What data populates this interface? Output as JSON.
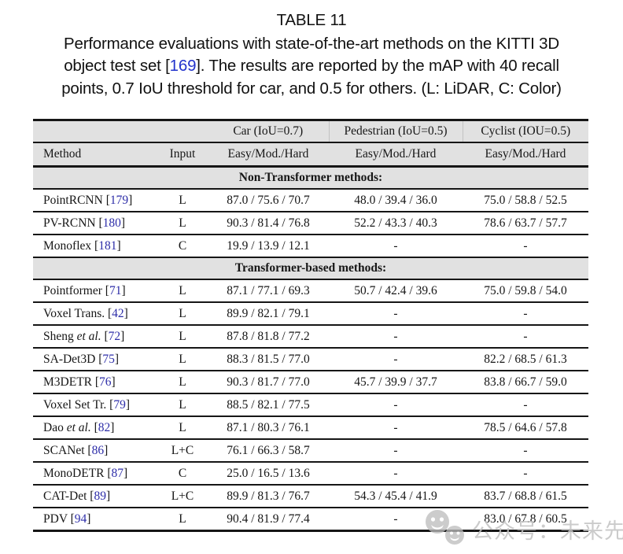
{
  "caption": {
    "title": "TABLE 11",
    "lines": [
      [
        {
          "t": "Performance evaluations with state-of-the-art methods on the KITTI 3D"
        }
      ],
      [
        {
          "t": "object test set ["
        },
        {
          "t": "169",
          "link": true
        },
        {
          "t": "]. The results are reported by the mAP with 40 recall"
        }
      ],
      [
        {
          "t": "points, 0.7 IoU threshold for car, and 0.5 for others. (L: LiDAR, C: Color)"
        }
      ]
    ]
  },
  "table": {
    "group_headers": {
      "car": "Car (IoU=0.7)",
      "pedestrian": "Pedestrian (IoU=0.5)",
      "cyclist": "Cyclist (IOU=0.5)"
    },
    "column_headers": {
      "method": "Method",
      "input": "Input",
      "metric": "Easy/Mod./Hard"
    },
    "sections": [
      {
        "title": "Non-Transformer methods:",
        "rows": [
          {
            "name": "PointRCNN",
            "etal": "",
            "cite": "179",
            "input": "L",
            "car": "87.0 / 75.6 / 70.7",
            "pedestrian": "48.0 / 39.4 / 36.0",
            "cyclist": "75.0 / 58.8 / 52.5"
          },
          {
            "name": "PV-RCNN",
            "etal": "",
            "cite": "180",
            "input": "L",
            "car": "90.3 / 81.4 / 76.8",
            "pedestrian": "52.2 / 43.3 / 40.3",
            "cyclist": "78.6 / 63.7 / 57.7"
          },
          {
            "name": "Monoflex",
            "etal": "",
            "cite": "181",
            "input": "C",
            "car": "19.9 / 13.9 / 12.1",
            "pedestrian": "-",
            "cyclist": "-"
          }
        ]
      },
      {
        "title": "Transformer-based methods:",
        "rows": [
          {
            "name": "Pointformer",
            "etal": "",
            "cite": "71",
            "input": "L",
            "car": "87.1 / 77.1 / 69.3",
            "pedestrian": "50.7 / 42.4 / 39.6",
            "cyclist": "75.0 / 59.8 / 54.0"
          },
          {
            "name": "Voxel Trans.",
            "etal": "",
            "cite": "42",
            "input": "L",
            "car": "89.9 / 82.1 / 79.1",
            "pedestrian": "-",
            "cyclist": "-"
          },
          {
            "name": "Sheng",
            "etal": "et al.",
            "cite": "72",
            "input": "L",
            "car": "87.8 / 81.8 / 77.2",
            "pedestrian": "-",
            "cyclist": "-"
          },
          {
            "name": "SA-Det3D",
            "etal": "",
            "cite": "75",
            "input": "L",
            "car": "88.3 / 81.5 / 77.0",
            "pedestrian": "-",
            "cyclist": "82.2 / 68.5 / 61.3"
          },
          {
            "name": "M3DETR",
            "etal": "",
            "cite": "76",
            "input": "L",
            "car": "90.3 / 81.7 / 77.0",
            "pedestrian": "45.7 / 39.9 / 37.7",
            "cyclist": "83.8 / 66.7 / 59.0"
          },
          {
            "name": "Voxel Set Tr.",
            "etal": "",
            "cite": "79",
            "input": "L",
            "car": "88.5 / 82.1 / 77.5",
            "pedestrian": "-",
            "cyclist": "-"
          },
          {
            "name": "Dao",
            "etal": "et al.",
            "cite": "82",
            "input": "L",
            "car": "87.1 / 80.3 / 76.1",
            "pedestrian": "-",
            "cyclist": "78.5 / 64.6 / 57.8"
          },
          {
            "name": "SCANet",
            "etal": "",
            "cite": "86",
            "input": "L+C",
            "car": "76.1 / 66.3 / 58.7",
            "pedestrian": "-",
            "cyclist": "-"
          },
          {
            "name": "MonoDETR",
            "etal": "",
            "cite": "87",
            "input": "C",
            "car": "25.0 / 16.5 / 13.6",
            "pedestrian": "-",
            "cyclist": "-"
          },
          {
            "name": "CAT-Det",
            "etal": "",
            "cite": "89",
            "input": "L+C",
            "car": "89.9 / 81.3 / 76.7",
            "pedestrian": "54.3 / 45.4 / 41.9",
            "cyclist": "83.7 / 68.8 / 61.5"
          },
          {
            "name": "PDV",
            "etal": "",
            "cite": "94",
            "input": "L",
            "car": "90.4 / 81.9 / 77.4",
            "pedestrian": "-",
            "cyclist": "83.0 / 67.8 / 60.5"
          }
        ]
      }
    ]
  },
  "watermark": {
    "text": "公众号：未来先知",
    "icon": "wechat-faces-icon"
  },
  "colors": {
    "caption_citation_blue": "#2233cc",
    "table_citation_blue": "#2d2da8",
    "header_gray": "#e1e1e1",
    "rule_black": "#161616",
    "watermark_gray": "#c3c3c3"
  }
}
